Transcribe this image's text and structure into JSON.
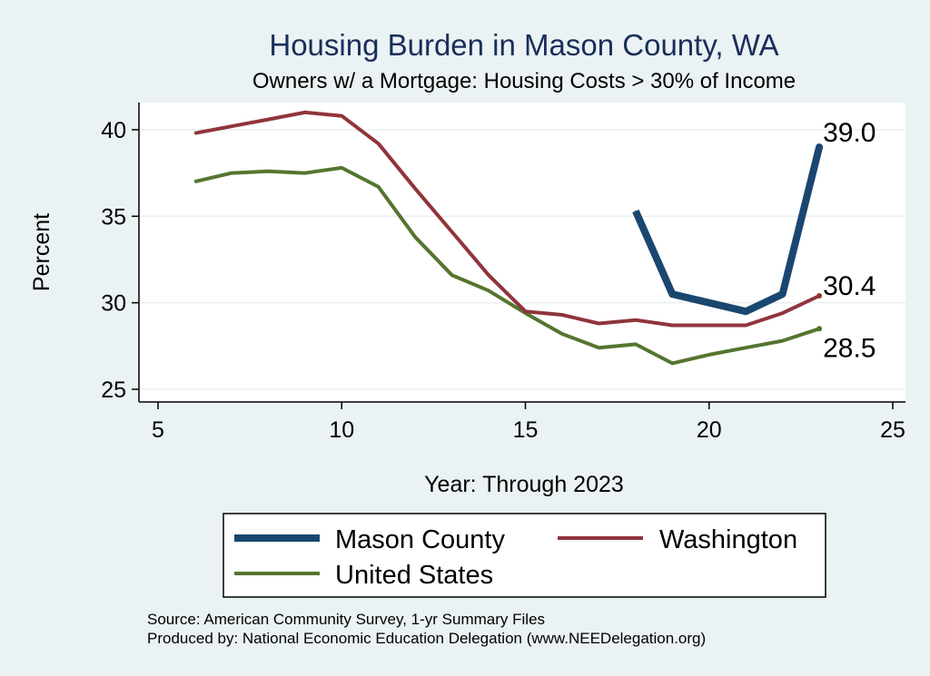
{
  "chart_data": {
    "type": "line",
    "title": "Housing Burden in Mason County, WA",
    "subtitle": "Owners w/ a Mortgage: Housing Costs > 30% of Income",
    "xlabel": "Year: Through 2023",
    "ylabel": "Percent",
    "xlim": [
      5,
      25
    ],
    "ylim": [
      25,
      41
    ],
    "xticks": [
      5,
      10,
      15,
      20,
      25
    ],
    "yticks": [
      25,
      30,
      35,
      40
    ],
    "grid": true,
    "legend_position": "bottom",
    "series": [
      {
        "name": "Mason County",
        "color": "#1a476f",
        "x": [
          18,
          19,
          21,
          22,
          23
        ],
        "values": [
          35.3,
          30.5,
          29.5,
          30.5,
          39.0
        ],
        "end_label": "39.0"
      },
      {
        "name": "Washington",
        "color": "#90353b",
        "x": [
          6,
          7,
          8,
          9,
          10,
          11,
          12,
          13,
          14,
          15,
          16,
          17,
          18,
          19,
          20,
          21,
          22,
          23
        ],
        "values": [
          39.8,
          40.2,
          40.6,
          41.0,
          40.8,
          39.2,
          36.6,
          34.1,
          31.6,
          29.5,
          29.3,
          28.8,
          29.0,
          28.7,
          28.7,
          28.7,
          29.4,
          30.4
        ],
        "end_label": "30.4"
      },
      {
        "name": "United States",
        "color": "#55752f",
        "x": [
          6,
          7,
          8,
          9,
          10,
          11,
          12,
          13,
          14,
          15,
          16,
          17,
          18,
          19,
          20,
          21,
          22,
          23
        ],
        "values": [
          37.0,
          37.5,
          37.6,
          37.5,
          37.8,
          36.7,
          33.8,
          31.6,
          30.7,
          29.4,
          28.2,
          27.4,
          27.6,
          26.5,
          27.0,
          27.4,
          27.8,
          28.5
        ],
        "end_label": "28.5"
      }
    ]
  },
  "footnotes": {
    "source": "Source: American Community Survey, 1-yr Summary Files",
    "produced_by": "Produced by: National Economic Education Delegation (www.NEEDelegation.org)"
  }
}
